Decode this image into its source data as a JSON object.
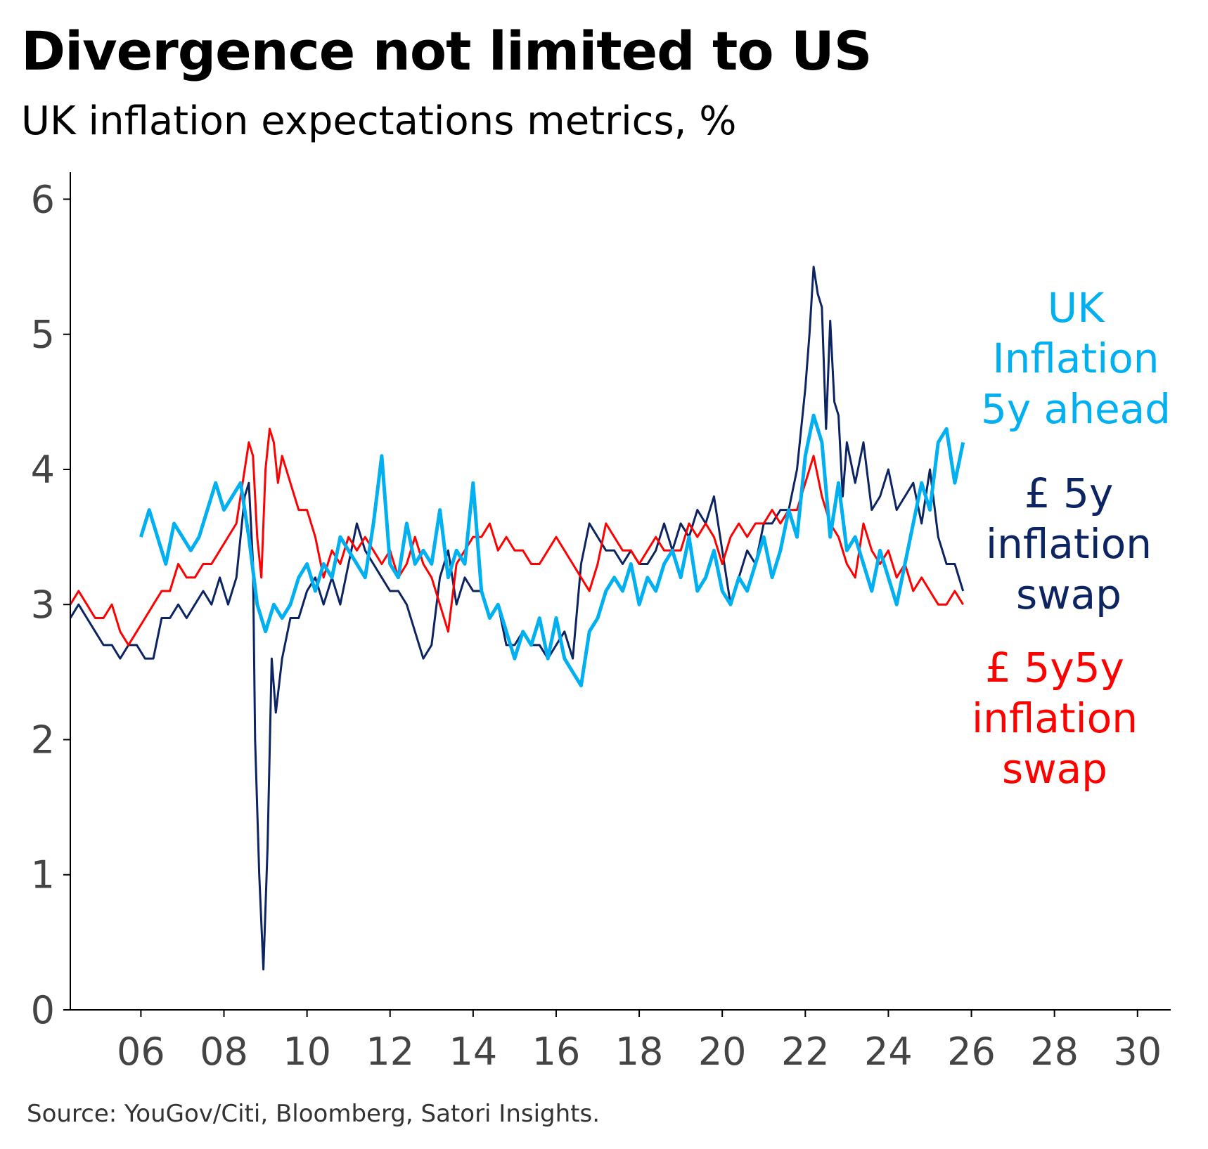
{
  "title": "Divergence not limited to US",
  "subtitle": "UK inflation expectations metrics, %",
  "source": "Source: YouGov/Citi, Bloomberg, Satori Insights.",
  "chart_data": {
    "type": "line",
    "xlabel": "",
    "ylabel": "",
    "xlim": [
      2004.3,
      2030.8
    ],
    "ylim": [
      0,
      6.2
    ],
    "x_ticks": [
      2006,
      2008,
      2010,
      2012,
      2014,
      2016,
      2018,
      2020,
      2022,
      2024,
      2026,
      2028,
      2030
    ],
    "x_tick_labels": [
      "06",
      "08",
      "10",
      "12",
      "14",
      "16",
      "18",
      "20",
      "22",
      "24",
      "26",
      "28",
      "30"
    ],
    "y_ticks": [
      0,
      1,
      2,
      3,
      4,
      5,
      6
    ],
    "y_tick_labels": [
      "0",
      "1",
      "2",
      "3",
      "4",
      "5",
      "6"
    ],
    "grid": false,
    "series": [
      {
        "name": "UK Inflation 5y ahead",
        "label_lines": [
          "UK",
          "Inflation",
          "5y ahead"
        ],
        "color": "#00B0F0",
        "x": [
          2006.0,
          2006.2,
          2006.4,
          2006.6,
          2006.8,
          2007.0,
          2007.2,
          2007.4,
          2007.6,
          2007.8,
          2008.0,
          2008.2,
          2008.4,
          2008.6,
          2008.8,
          2009.0,
          2009.2,
          2009.4,
          2009.6,
          2009.8,
          2010.0,
          2010.2,
          2010.4,
          2010.6,
          2010.8,
          2011.0,
          2011.2,
          2011.4,
          2011.6,
          2011.8,
          2012.0,
          2012.2,
          2012.4,
          2012.6,
          2012.8,
          2013.0,
          2013.2,
          2013.4,
          2013.6,
          2013.8,
          2014.0,
          2014.2,
          2014.4,
          2014.6,
          2014.8,
          2015.0,
          2015.2,
          2015.4,
          2015.6,
          2015.8,
          2016.0,
          2016.2,
          2016.4,
          2016.6,
          2016.8,
          2017.0,
          2017.2,
          2017.4,
          2017.6,
          2017.8,
          2018.0,
          2018.2,
          2018.4,
          2018.6,
          2018.8,
          2019.0,
          2019.2,
          2019.4,
          2019.6,
          2019.8,
          2020.0,
          2020.2,
          2020.4,
          2020.6,
          2020.8,
          2021.0,
          2021.2,
          2021.4,
          2021.6,
          2021.8,
          2022.0,
          2022.2,
          2022.4,
          2022.6,
          2022.8,
          2023.0,
          2023.2,
          2023.4,
          2023.6,
          2023.8,
          2024.0,
          2024.2,
          2024.4,
          2024.6,
          2024.8,
          2025.0,
          2025.2,
          2025.4,
          2025.6,
          2025.8
        ],
        "values": [
          3.5,
          3.7,
          3.5,
          3.3,
          3.6,
          3.5,
          3.4,
          3.5,
          3.7,
          3.9,
          3.7,
          3.8,
          3.9,
          3.5,
          3.0,
          2.8,
          3.0,
          2.9,
          3.0,
          3.2,
          3.3,
          3.1,
          3.3,
          3.2,
          3.5,
          3.4,
          3.3,
          3.2,
          3.6,
          4.1,
          3.3,
          3.2,
          3.6,
          3.3,
          3.4,
          3.3,
          3.7,
          3.2,
          3.4,
          3.3,
          3.9,
          3.1,
          2.9,
          3.0,
          2.8,
          2.6,
          2.8,
          2.7,
          2.9,
          2.6,
          2.9,
          2.6,
          2.5,
          2.4,
          2.8,
          2.9,
          3.1,
          3.2,
          3.1,
          3.3,
          3.0,
          3.2,
          3.1,
          3.3,
          3.4,
          3.2,
          3.5,
          3.1,
          3.2,
          3.4,
          3.1,
          3.0,
          3.2,
          3.1,
          3.3,
          3.5,
          3.2,
          3.4,
          3.7,
          3.5,
          4.1,
          4.4,
          4.2,
          3.5,
          3.9,
          3.4,
          3.5,
          3.3,
          3.1,
          3.4,
          3.2,
          3.0,
          3.3,
          3.6,
          3.9,
          3.7,
          4.2,
          4.3,
          3.9,
          4.2
        ]
      },
      {
        "name": "£ 5y inflation swap",
        "label_lines": [
          "£ 5y",
          "inflation",
          "swap"
        ],
        "color": "#0C2461",
        "x": [
          2004.3,
          2004.5,
          2004.7,
          2004.9,
          2005.1,
          2005.3,
          2005.5,
          2005.7,
          2005.9,
          2006.1,
          2006.3,
          2006.5,
          2006.7,
          2006.9,
          2007.1,
          2007.3,
          2007.5,
          2007.7,
          2007.9,
          2008.1,
          2008.3,
          2008.5,
          2008.6,
          2008.7,
          2008.75,
          2008.85,
          2008.95,
          2009.05,
          2009.15,
          2009.25,
          2009.4,
          2009.6,
          2009.8,
          2010.0,
          2010.2,
          2010.4,
          2010.6,
          2010.8,
          2011.0,
          2011.2,
          2011.4,
          2011.6,
          2011.8,
          2012.0,
          2012.2,
          2012.4,
          2012.6,
          2012.8,
          2013.0,
          2013.2,
          2013.4,
          2013.6,
          2013.8,
          2014.0,
          2014.2,
          2014.4,
          2014.6,
          2014.8,
          2015.0,
          2015.2,
          2015.4,
          2015.6,
          2015.8,
          2016.0,
          2016.2,
          2016.4,
          2016.6,
          2016.8,
          2017.0,
          2017.2,
          2017.4,
          2017.6,
          2017.8,
          2018.0,
          2018.2,
          2018.4,
          2018.6,
          2018.8,
          2019.0,
          2019.2,
          2019.4,
          2019.6,
          2019.8,
          2020.0,
          2020.2,
          2020.4,
          2020.6,
          2020.8,
          2021.0,
          2021.2,
          2021.4,
          2021.6,
          2021.8,
          2022.0,
          2022.1,
          2022.2,
          2022.3,
          2022.4,
          2022.5,
          2022.6,
          2022.7,
          2022.8,
          2022.9,
          2023.0,
          2023.2,
          2023.4,
          2023.6,
          2023.8,
          2024.0,
          2024.2,
          2024.4,
          2024.6,
          2024.8,
          2025.0,
          2025.2,
          2025.4,
          2025.6,
          2025.8
        ],
        "values": [
          2.9,
          3.0,
          2.9,
          2.8,
          2.7,
          2.7,
          2.6,
          2.7,
          2.7,
          2.6,
          2.6,
          2.9,
          2.9,
          3.0,
          2.9,
          3.0,
          3.1,
          3.0,
          3.2,
          3.0,
          3.2,
          3.8,
          3.9,
          3.3,
          2.0,
          1.0,
          0.3,
          1.2,
          2.6,
          2.2,
          2.6,
          2.9,
          2.9,
          3.1,
          3.2,
          3.0,
          3.2,
          3.0,
          3.3,
          3.6,
          3.4,
          3.3,
          3.2,
          3.1,
          3.1,
          3.0,
          2.8,
          2.6,
          2.7,
          3.2,
          3.4,
          3.0,
          3.2,
          3.1,
          3.1,
          2.9,
          3.0,
          2.7,
          2.7,
          2.8,
          2.7,
          2.7,
          2.6,
          2.7,
          2.8,
          2.6,
          3.3,
          3.6,
          3.5,
          3.4,
          3.4,
          3.3,
          3.4,
          3.3,
          3.3,
          3.4,
          3.6,
          3.4,
          3.6,
          3.5,
          3.7,
          3.6,
          3.8,
          3.4,
          3.0,
          3.2,
          3.4,
          3.3,
          3.6,
          3.6,
          3.7,
          3.7,
          4.0,
          4.6,
          5.0,
          5.5,
          5.3,
          5.2,
          4.3,
          5.1,
          4.5,
          4.4,
          3.8,
          4.2,
          3.9,
          4.2,
          3.7,
          3.8,
          4.0,
          3.7,
          3.8,
          3.9,
          3.6,
          4.0,
          3.5,
          3.3,
          3.3,
          3.1
        ]
      },
      {
        "name": "£ 5y5y inflation swap",
        "label_lines": [
          "£ 5y5y",
          "inflation",
          "swap"
        ],
        "color": "#FF0000",
        "x": [
          2004.3,
          2004.5,
          2004.7,
          2004.9,
          2005.1,
          2005.3,
          2005.5,
          2005.7,
          2005.9,
          2006.1,
          2006.3,
          2006.5,
          2006.7,
          2006.9,
          2007.1,
          2007.3,
          2007.5,
          2007.7,
          2007.9,
          2008.1,
          2008.3,
          2008.5,
          2008.6,
          2008.7,
          2008.8,
          2008.9,
          2009.0,
          2009.1,
          2009.2,
          2009.3,
          2009.4,
          2009.6,
          2009.8,
          2010.0,
          2010.2,
          2010.4,
          2010.6,
          2010.8,
          2011.0,
          2011.2,
          2011.4,
          2011.6,
          2011.8,
          2012.0,
          2012.2,
          2012.4,
          2012.6,
          2012.8,
          2013.0,
          2013.2,
          2013.4,
          2013.6,
          2013.8,
          2014.0,
          2014.2,
          2014.4,
          2014.6,
          2014.8,
          2015.0,
          2015.2,
          2015.4,
          2015.6,
          2015.8,
          2016.0,
          2016.2,
          2016.4,
          2016.6,
          2016.8,
          2017.0,
          2017.2,
          2017.4,
          2017.6,
          2017.8,
          2018.0,
          2018.2,
          2018.4,
          2018.6,
          2018.8,
          2019.0,
          2019.2,
          2019.4,
          2019.6,
          2019.8,
          2020.0,
          2020.2,
          2020.4,
          2020.6,
          2020.8,
          2021.0,
          2021.2,
          2021.4,
          2021.6,
          2021.8,
          2022.0,
          2022.2,
          2022.4,
          2022.6,
          2022.8,
          2023.0,
          2023.2,
          2023.4,
          2023.6,
          2023.8,
          2024.0,
          2024.2,
          2024.4,
          2024.6,
          2024.8,
          2025.0,
          2025.2,
          2025.4,
          2025.6,
          2025.8
        ],
        "values": [
          3.0,
          3.1,
          3.0,
          2.9,
          2.9,
          3.0,
          2.8,
          2.7,
          2.8,
          2.9,
          3.0,
          3.1,
          3.1,
          3.3,
          3.2,
          3.2,
          3.3,
          3.3,
          3.4,
          3.5,
          3.6,
          4.0,
          4.2,
          4.1,
          3.5,
          3.2,
          4.0,
          4.3,
          4.2,
          3.9,
          4.1,
          3.9,
          3.7,
          3.7,
          3.5,
          3.2,
          3.4,
          3.3,
          3.5,
          3.4,
          3.5,
          3.4,
          3.3,
          3.4,
          3.2,
          3.3,
          3.5,
          3.3,
          3.2,
          3.0,
          2.8,
          3.3,
          3.4,
          3.5,
          3.5,
          3.6,
          3.4,
          3.5,
          3.4,
          3.4,
          3.3,
          3.3,
          3.4,
          3.5,
          3.4,
          3.3,
          3.2,
          3.1,
          3.3,
          3.6,
          3.5,
          3.4,
          3.4,
          3.3,
          3.4,
          3.5,
          3.4,
          3.4,
          3.4,
          3.6,
          3.5,
          3.6,
          3.5,
          3.3,
          3.5,
          3.6,
          3.5,
          3.6,
          3.6,
          3.7,
          3.6,
          3.7,
          3.7,
          3.9,
          4.1,
          3.8,
          3.6,
          3.5,
          3.3,
          3.2,
          3.6,
          3.4,
          3.3,
          3.4,
          3.2,
          3.3,
          3.1,
          3.2,
          3.1,
          3.0,
          3.0,
          3.1,
          3.0
        ]
      }
    ]
  }
}
